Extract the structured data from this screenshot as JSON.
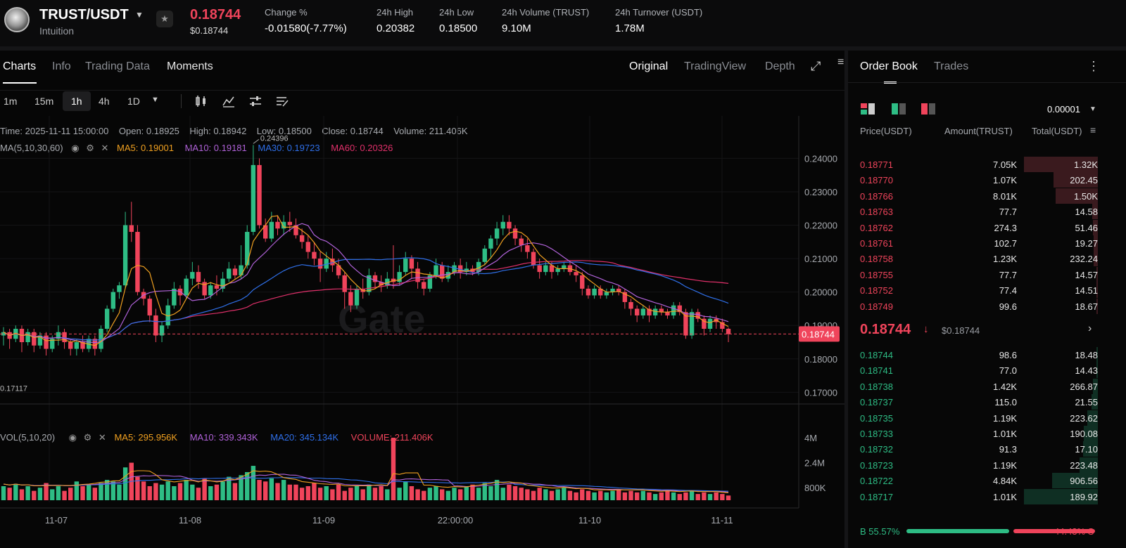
{
  "header": {
    "pair": "TRUST/USDT",
    "subtitle": "Intuition",
    "price": "0.18744",
    "price_usd": "$0.18744",
    "stats": [
      {
        "label": "Change %",
        "value": "-0.01580(-7.77%)"
      },
      {
        "label": "24h High",
        "value": "0.20382"
      },
      {
        "label": "24h Low",
        "value": "0.18500"
      },
      {
        "label": "24h Volume (TRUST)",
        "value": "9.10M"
      },
      {
        "label": "24h Turnover (USDT)",
        "value": "1.78M"
      }
    ]
  },
  "chart_tabs": [
    "Charts",
    "Info",
    "Trading Data",
    "Moments"
  ],
  "view_tabs": [
    "Original",
    "TradingView",
    "Depth"
  ],
  "intervals": [
    "1m",
    "15m",
    "1h",
    "4h",
    "1D"
  ],
  "ohlc": {
    "time": "Time: 2025-11-11 15:00:00",
    "open": "Open: 0.18925",
    "high": "High: 0.18942",
    "low": "Low: 0.18500",
    "close": "Close: 0.18744",
    "volume": "Volume: 211.406K"
  },
  "ma_legend": {
    "label": "MA(5,10,30,60)",
    "ma5": "MA5: 0.19001",
    "ma10": "MA10: 0.19181",
    "ma30": "MA30: 0.19723",
    "ma60": "MA60: 0.20326"
  },
  "vol_legend": {
    "label": "VOL(5,10,20)",
    "ma5": "MA5: 295.956K",
    "ma10": "MA10: 339.343K",
    "ma20": "MA20: 345.134K",
    "volume": "VOLUME: 211.406K"
  },
  "colors": {
    "up": "#2ebd85",
    "down": "#f0445b",
    "ma5": "#f0a020",
    "ma10": "#b062d9",
    "ma30": "#2f6fe8",
    "ma60": "#e0306a"
  },
  "chart_data": {
    "type": "candlestick",
    "price_axis": [
      "0.24000",
      "0.23000",
      "0.22000",
      "0.21000",
      "0.20000",
      "0.19000",
      "0.18000",
      "0.17000"
    ],
    "price_range": [
      0.1665,
      0.2527
    ],
    "volume_axis": [
      "4M",
      "2.4M",
      "800K"
    ],
    "x_ticks": [
      "11-07",
      "11-08",
      "11-09",
      "22:00:00",
      "11-10",
      "11-11"
    ],
    "current_price_label": "0.18744",
    "high_marker": "0.24396",
    "low_marker": "0.17117",
    "candles": [
      [
        0.187,
        0.188,
        0.184,
        0.1895
      ],
      [
        0.188,
        0.186,
        0.183,
        0.189
      ],
      [
        0.186,
        0.189,
        0.185,
        0.19
      ],
      [
        0.189,
        0.185,
        0.182,
        0.19
      ],
      [
        0.185,
        0.188,
        0.184,
        0.189
      ],
      [
        0.188,
        0.184,
        0.182,
        0.189
      ],
      [
        0.184,
        0.187,
        0.183,
        0.188
      ],
      [
        0.187,
        0.183,
        0.181,
        0.188
      ],
      [
        0.183,
        0.186,
        0.182,
        0.187
      ],
      [
        0.186,
        0.188,
        0.184,
        0.19
      ],
      [
        0.188,
        0.185,
        0.183,
        0.189
      ],
      [
        0.185,
        0.183,
        0.181,
        0.186
      ],
      [
        0.183,
        0.185,
        0.181,
        0.186
      ],
      [
        0.185,
        0.183,
        0.182,
        0.187
      ],
      [
        0.183,
        0.186,
        0.182,
        0.187
      ],
      [
        0.186,
        0.183,
        0.181,
        0.187
      ],
      [
        0.183,
        0.189,
        0.182,
        0.19
      ],
      [
        0.189,
        0.195,
        0.188,
        0.196
      ],
      [
        0.195,
        0.2,
        0.194,
        0.201
      ],
      [
        0.2,
        0.202,
        0.198,
        0.203
      ],
      [
        0.202,
        0.22,
        0.201,
        0.224
      ],
      [
        0.22,
        0.218,
        0.215,
        0.227
      ],
      [
        0.218,
        0.2,
        0.199,
        0.22
      ],
      [
        0.2,
        0.198,
        0.196,
        0.201
      ],
      [
        0.198,
        0.193,
        0.191,
        0.199
      ],
      [
        0.193,
        0.187,
        0.185,
        0.195
      ],
      [
        0.187,
        0.19,
        0.185,
        0.191
      ],
      [
        0.19,
        0.196,
        0.189,
        0.198
      ],
      [
        0.196,
        0.201,
        0.195,
        0.203
      ],
      [
        0.201,
        0.199,
        0.196,
        0.202
      ],
      [
        0.199,
        0.204,
        0.198,
        0.205
      ],
      [
        0.204,
        0.206,
        0.202,
        0.209
      ],
      [
        0.206,
        0.203,
        0.201,
        0.208
      ],
      [
        0.203,
        0.199,
        0.198,
        0.204
      ],
      [
        0.199,
        0.202,
        0.198,
        0.203
      ],
      [
        0.202,
        0.201,
        0.199,
        0.205
      ],
      [
        0.201,
        0.204,
        0.2,
        0.206
      ],
      [
        0.204,
        0.207,
        0.203,
        0.209
      ],
      [
        0.207,
        0.205,
        0.204,
        0.208
      ],
      [
        0.205,
        0.208,
        0.204,
        0.214
      ],
      [
        0.208,
        0.218,
        0.207,
        0.22
      ],
      [
        0.218,
        0.238,
        0.217,
        0.244
      ],
      [
        0.238,
        0.22,
        0.219,
        0.24
      ],
      [
        0.22,
        0.216,
        0.215,
        0.222
      ],
      [
        0.216,
        0.221,
        0.215,
        0.224
      ],
      [
        0.221,
        0.219,
        0.217,
        0.223
      ],
      [
        0.219,
        0.221,
        0.217,
        0.223
      ],
      [
        0.221,
        0.22,
        0.218,
        0.224
      ],
      [
        0.22,
        0.217,
        0.216,
        0.222
      ],
      [
        0.217,
        0.215,
        0.213,
        0.219
      ],
      [
        0.215,
        0.212,
        0.21,
        0.217
      ],
      [
        0.212,
        0.21,
        0.208,
        0.215
      ],
      [
        0.21,
        0.207,
        0.203,
        0.212
      ],
      [
        0.207,
        0.21,
        0.206,
        0.212
      ],
      [
        0.21,
        0.208,
        0.206,
        0.213
      ],
      [
        0.208,
        0.205,
        0.204,
        0.21
      ],
      [
        0.205,
        0.2,
        0.195,
        0.206
      ],
      [
        0.2,
        0.196,
        0.194,
        0.202
      ],
      [
        0.196,
        0.201,
        0.195,
        0.202
      ],
      [
        0.201,
        0.2,
        0.198,
        0.204
      ],
      [
        0.2,
        0.205,
        0.199,
        0.207
      ],
      [
        0.205,
        0.203,
        0.201,
        0.206
      ],
      [
        0.203,
        0.202,
        0.2,
        0.205
      ],
      [
        0.202,
        0.204,
        0.201,
        0.206
      ],
      [
        0.204,
        0.203,
        0.201,
        0.214
      ],
      [
        0.203,
        0.206,
        0.202,
        0.208
      ],
      [
        0.206,
        0.21,
        0.205,
        0.212
      ],
      [
        0.21,
        0.207,
        0.204,
        0.211
      ],
      [
        0.207,
        0.203,
        0.201,
        0.209
      ],
      [
        0.203,
        0.201,
        0.199,
        0.204
      ],
      [
        0.201,
        0.205,
        0.2,
        0.206
      ],
      [
        0.205,
        0.208,
        0.204,
        0.21
      ],
      [
        0.208,
        0.204,
        0.203,
        0.209
      ],
      [
        0.204,
        0.206,
        0.203,
        0.208
      ],
      [
        0.206,
        0.208,
        0.205,
        0.209
      ],
      [
        0.208,
        0.206,
        0.204,
        0.21
      ],
      [
        0.206,
        0.207,
        0.205,
        0.209
      ],
      [
        0.207,
        0.206,
        0.205,
        0.208
      ],
      [
        0.206,
        0.209,
        0.205,
        0.21
      ],
      [
        0.209,
        0.213,
        0.208,
        0.214
      ],
      [
        0.213,
        0.216,
        0.21,
        0.217
      ],
      [
        0.216,
        0.219,
        0.214,
        0.221
      ],
      [
        0.219,
        0.221,
        0.217,
        0.223
      ],
      [
        0.221,
        0.219,
        0.217,
        0.223
      ],
      [
        0.219,
        0.216,
        0.214,
        0.22
      ],
      [
        0.216,
        0.214,
        0.212,
        0.217
      ],
      [
        0.214,
        0.212,
        0.21,
        0.216
      ],
      [
        0.212,
        0.208,
        0.207,
        0.213
      ],
      [
        0.208,
        0.206,
        0.204,
        0.21
      ],
      [
        0.206,
        0.208,
        0.205,
        0.209
      ],
      [
        0.208,
        0.206,
        0.204,
        0.209
      ],
      [
        0.206,
        0.207,
        0.205,
        0.208
      ],
      [
        0.207,
        0.208,
        0.206,
        0.209
      ],
      [
        0.208,
        0.206,
        0.205,
        0.209
      ],
      [
        0.206,
        0.205,
        0.203,
        0.208
      ],
      [
        0.205,
        0.201,
        0.199,
        0.206
      ],
      [
        0.201,
        0.199,
        0.198,
        0.202
      ],
      [
        0.199,
        0.201,
        0.198,
        0.202
      ],
      [
        0.201,
        0.199,
        0.198,
        0.202
      ],
      [
        0.199,
        0.2,
        0.198,
        0.201
      ],
      [
        0.2,
        0.201,
        0.199,
        0.202
      ],
      [
        0.201,
        0.2,
        0.199,
        0.202
      ],
      [
        0.2,
        0.197,
        0.195,
        0.201
      ],
      [
        0.197,
        0.195,
        0.193,
        0.198
      ],
      [
        0.195,
        0.193,
        0.191,
        0.196
      ],
      [
        0.193,
        0.195,
        0.192,
        0.196
      ],
      [
        0.195,
        0.193,
        0.191,
        0.196
      ],
      [
        0.193,
        0.195,
        0.192,
        0.196
      ],
      [
        0.195,
        0.194,
        0.193,
        0.196
      ],
      [
        0.194,
        0.193,
        0.192,
        0.195
      ],
      [
        0.193,
        0.196,
        0.192,
        0.197
      ],
      [
        0.196,
        0.194,
        0.193,
        0.197
      ],
      [
        0.194,
        0.187,
        0.186,
        0.195
      ],
      [
        0.187,
        0.194,
        0.186,
        0.195
      ],
      [
        0.194,
        0.192,
        0.191,
        0.195
      ],
      [
        0.192,
        0.189,
        0.187,
        0.193
      ],
      [
        0.189,
        0.192,
        0.188,
        0.193
      ],
      [
        0.192,
        0.191,
        0.189,
        0.193
      ],
      [
        0.191,
        0.189,
        0.188,
        0.192
      ],
      [
        0.189,
        0.1874,
        0.185,
        0.1894
      ]
    ],
    "volumes": [
      0.9,
      0.8,
      1.0,
      0.7,
      0.9,
      0.6,
      0.8,
      1.1,
      0.7,
      0.9,
      0.6,
      0.8,
      1.2,
      0.9,
      1.0,
      0.8,
      1.1,
      1.3,
      1.2,
      1.0,
      2.1,
      2.4,
      1.5,
      1.2,
      0.9,
      1.1,
      1.0,
      1.2,
      0.9,
      1.1,
      1.3,
      1.0,
      0.8,
      1.4,
      0.9,
      1.0,
      1.2,
      1.5,
      1.1,
      1.6,
      1.8,
      2.2,
      1.3,
      1.2,
      1.4,
      1.1,
      1.3,
      1.0,
      1.0,
      0.8,
      0.9,
      1.1,
      0.8,
      0.9,
      0.7,
      1.0,
      0.6,
      0.8,
      0.9,
      0.7,
      1.0,
      0.8,
      0.9,
      0.7,
      4.0,
      0.8,
      1.2,
      0.9,
      0.7,
      0.6,
      0.8,
      0.9,
      0.7,
      0.6,
      0.8,
      0.7,
      0.9,
      1.0,
      0.8,
      1.1,
      0.9,
      1.3,
      0.8,
      1.0,
      0.9,
      0.8,
      0.7,
      0.6,
      0.8,
      0.7,
      0.6,
      0.7,
      0.8,
      0.6,
      0.5,
      0.7,
      0.6,
      0.5,
      0.6,
      0.5,
      0.6,
      0.7,
      0.5,
      0.6,
      0.5,
      0.6,
      0.5,
      0.4,
      0.5,
      0.6,
      0.5,
      0.4,
      0.5,
      0.6,
      0.4,
      0.5,
      0.4,
      0.5,
      0.4,
      0.3
    ]
  },
  "orderbook": {
    "tabs": [
      "Order Book",
      "Trades"
    ],
    "precision": "0.00001",
    "headers": [
      "Price(USDT)",
      "Amount(TRUST)",
      "Total(USDT)"
    ],
    "asks": [
      {
        "price": "0.18771",
        "amount": "7.05K",
        "total": "1.32K",
        "depth": 1.0
      },
      {
        "price": "0.18770",
        "amount": "1.07K",
        "total": "202.45",
        "depth": 0.6
      },
      {
        "price": "0.18766",
        "amount": "8.01K",
        "total": "1.50K",
        "depth": 0.57
      },
      {
        "price": "0.18763",
        "amount": "77.7",
        "total": "14.58",
        "depth": 0.08
      },
      {
        "price": "0.18762",
        "amount": "274.3",
        "total": "51.46",
        "depth": 0.07
      },
      {
        "price": "0.18761",
        "amount": "102.7",
        "total": "19.27",
        "depth": 0.06
      },
      {
        "price": "0.18758",
        "amount": "1.23K",
        "total": "232.24",
        "depth": 0.06
      },
      {
        "price": "0.18755",
        "amount": "77.7",
        "total": "14.57",
        "depth": 0.02
      },
      {
        "price": "0.18752",
        "amount": "77.4",
        "total": "14.51",
        "depth": 0.02
      },
      {
        "price": "0.18749",
        "amount": "99.6",
        "total": "18.67",
        "depth": 0.01
      }
    ],
    "mid_price": "0.18744",
    "mid_usd": "$0.18744",
    "bids": [
      {
        "price": "0.18744",
        "amount": "98.6",
        "total": "18.48",
        "depth": 0.02
      },
      {
        "price": "0.18741",
        "amount": "77.0",
        "total": "14.43",
        "depth": 0.02
      },
      {
        "price": "0.18738",
        "amount": "1.42K",
        "total": "266.87",
        "depth": 0.07
      },
      {
        "price": "0.18737",
        "amount": "115.0",
        "total": "21.55",
        "depth": 0.09
      },
      {
        "price": "0.18735",
        "amount": "1.19K",
        "total": "223.62",
        "depth": 0.14
      },
      {
        "price": "0.18733",
        "amount": "1.01K",
        "total": "190.08",
        "depth": 0.19
      },
      {
        "price": "0.18732",
        "amount": "91.3",
        "total": "17.10",
        "depth": 0.2
      },
      {
        "price": "0.18723",
        "amount": "1.19K",
        "total": "223.48",
        "depth": 0.25
      },
      {
        "price": "0.18722",
        "amount": "4.84K",
        "total": "906.56",
        "depth": 0.62
      },
      {
        "price": "0.18717",
        "amount": "1.01K",
        "total": "189.92",
        "depth": 1.0
      }
    ],
    "buy_ratio": "B 55.57%",
    "sell_ratio": "44.43% S",
    "buy_fraction": 0.5557
  }
}
